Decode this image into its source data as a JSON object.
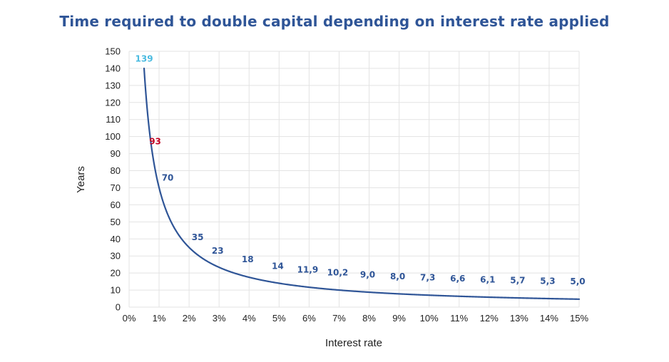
{
  "chart_data": {
    "type": "line",
    "title": "Time required to double capital depending on interest rate applied",
    "xlabel": "Interest rate",
    "ylabel": "Years",
    "xlim": [
      0,
      15
    ],
    "ylim": [
      0,
      150
    ],
    "x_ticks": [
      "0%",
      "1%",
      "2%",
      "3%",
      "4%",
      "5%",
      "6%",
      "7%",
      "8%",
      "9%",
      "10%",
      "11%",
      "12%",
      "13%",
      "14%",
      "15%"
    ],
    "y_ticks": [
      "0",
      "10",
      "20",
      "30",
      "40",
      "50",
      "60",
      "70",
      "80",
      "90",
      "100",
      "110",
      "120",
      "130",
      "140",
      "150"
    ],
    "grid": true,
    "curve_color": "#2f5597",
    "series": [
      {
        "x": [
          0.5,
          0.75,
          1,
          2,
          3,
          4,
          5,
          6,
          7,
          8,
          9,
          10,
          11,
          12,
          13,
          14,
          15
        ],
        "values": [
          139,
          93,
          70,
          35,
          23,
          18,
          14,
          11.9,
          10.2,
          9.0,
          8.0,
          7.3,
          6.6,
          6.1,
          5.7,
          5.3,
          5.0
        ]
      }
    ],
    "data_labels": [
      {
        "x": 0.5,
        "y": 139,
        "text": "139",
        "color": "#4bbbe0"
      },
      {
        "x": 0.75,
        "y": 93,
        "text": "93",
        "color": "#c00023"
      },
      {
        "x": 1,
        "y": 70,
        "text": "70",
        "color": "#2f5597"
      },
      {
        "x": 2,
        "y": 35,
        "text": "35",
        "color": "#2f5597"
      },
      {
        "x": 3,
        "y": 23,
        "text": "23",
        "color": "#2f5597"
      },
      {
        "x": 4,
        "y": 18,
        "text": "18",
        "color": "#2f5597"
      },
      {
        "x": 5,
        "y": 14,
        "text": "14",
        "color": "#2f5597"
      },
      {
        "x": 6,
        "y": 11.9,
        "text": "11,9",
        "color": "#2f5597"
      },
      {
        "x": 7,
        "y": 10.2,
        "text": "10,2",
        "color": "#2f5597"
      },
      {
        "x": 8,
        "y": 9.0,
        "text": "9,0",
        "color": "#2f5597"
      },
      {
        "x": 9,
        "y": 8.0,
        "text": "8,0",
        "color": "#2f5597"
      },
      {
        "x": 10,
        "y": 7.3,
        "text": "7,3",
        "color": "#2f5597"
      },
      {
        "x": 11,
        "y": 6.6,
        "text": "6,6",
        "color": "#2f5597"
      },
      {
        "x": 12,
        "y": 6.1,
        "text": "6,1",
        "color": "#2f5597"
      },
      {
        "x": 13,
        "y": 5.7,
        "text": "5,7",
        "color": "#2f5597"
      },
      {
        "x": 14,
        "y": 5.3,
        "text": "5,3",
        "color": "#2f5597"
      },
      {
        "x": 15,
        "y": 5.0,
        "text": "5,0",
        "color": "#2f5597"
      }
    ]
  }
}
